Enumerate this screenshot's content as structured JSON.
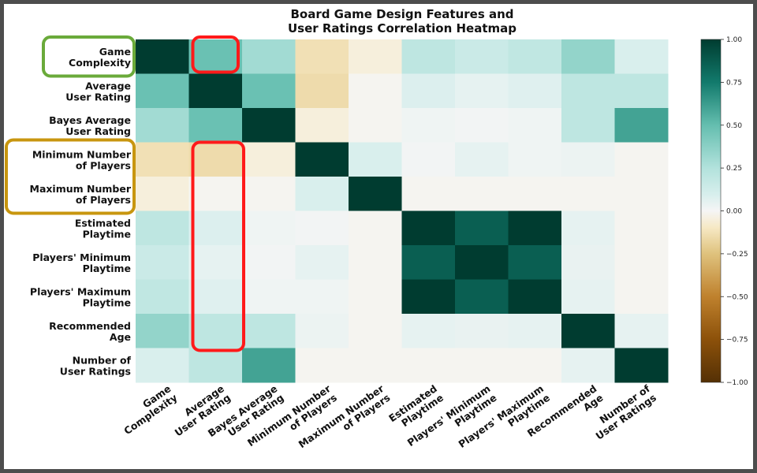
{
  "chart_data": {
    "type": "heatmap",
    "title": [
      "Board Game Design Features and",
      "User Ratings Correlation Heatmap"
    ],
    "row_labels": [
      [
        "Game",
        "Complexity"
      ],
      [
        "Average",
        "User Rating"
      ],
      [
        "Bayes Average",
        "User Rating"
      ],
      [
        "Minimum Number",
        "of Players"
      ],
      [
        "Maximum Number",
        "of Players"
      ],
      [
        "Estimated",
        "Playtime"
      ],
      [
        "Players' Minimum",
        "Playtime"
      ],
      [
        "Players' Maximum",
        "Playtime"
      ],
      [
        "Recommended",
        "Age"
      ],
      [
        "Number of",
        "User Ratings"
      ]
    ],
    "col_labels": [
      [
        "Game",
        "Complexity"
      ],
      [
        "Average",
        "User Rating"
      ],
      [
        "Bayes Average",
        "User Rating"
      ],
      [
        "Minimum Number",
        "of Players"
      ],
      [
        "Maximum Number",
        "of Players"
      ],
      [
        "Estimated",
        "Playtime"
      ],
      [
        "Players' Minimum",
        "Playtime"
      ],
      [
        "Players' Maximum",
        "Playtime"
      ],
      [
        "Recommended",
        "Age"
      ],
      [
        "Number of",
        "User Ratings"
      ]
    ],
    "matrix": [
      [
        1.0,
        0.48,
        0.3,
        -0.13,
        -0.05,
        0.2,
        0.15,
        0.19,
        0.35,
        0.09
      ],
      [
        0.48,
        1.0,
        0.48,
        -0.15,
        -0.01,
        0.08,
        0.05,
        0.07,
        0.2,
        0.2
      ],
      [
        0.3,
        0.48,
        1.0,
        -0.05,
        -0.01,
        0.02,
        0.01,
        0.02,
        0.2,
        0.6
      ],
      [
        -0.13,
        -0.15,
        -0.05,
        1.0,
        0.09,
        0.01,
        0.05,
        0.02,
        0.03,
        -0.01
      ],
      [
        -0.05,
        -0.01,
        -0.01,
        0.09,
        1.0,
        -0.01,
        -0.01,
        -0.01,
        -0.01,
        -0.01
      ],
      [
        0.2,
        0.08,
        0.02,
        0.01,
        -0.01,
        1.0,
        0.86,
        1.0,
        0.05,
        -0.01
      ],
      [
        0.15,
        0.05,
        0.01,
        0.05,
        -0.01,
        0.86,
        1.0,
        0.86,
        0.04,
        -0.01
      ],
      [
        0.19,
        0.07,
        0.02,
        0.02,
        -0.01,
        1.0,
        0.86,
        1.0,
        0.05,
        -0.01
      ],
      [
        0.35,
        0.2,
        0.2,
        0.03,
        -0.01,
        0.05,
        0.04,
        0.05,
        1.0,
        0.05
      ],
      [
        0.09,
        0.2,
        0.6,
        -0.01,
        -0.01,
        -0.01,
        -0.01,
        -0.01,
        0.05,
        1.0
      ]
    ],
    "vmin": -1.0,
    "vmax": 1.0,
    "colormap": "BrBG",
    "colorbar_ticks": [
      "1.00",
      "0.75",
      "0.50",
      "0.25",
      "0.00",
      "−0.25",
      "−0.50",
      "−0.75",
      "−1.00"
    ],
    "annotations": [
      {
        "kind": "rounded-box",
        "color": "#6aaa3a",
        "target": "row",
        "rows": [
          0,
          0
        ]
      },
      {
        "kind": "rounded-box",
        "color": "#c8960f",
        "target": "row",
        "rows": [
          3,
          4
        ]
      },
      {
        "kind": "rounded-box",
        "color": "#ff1a1a",
        "target": "cell",
        "row": 0,
        "col": 1
      },
      {
        "kind": "rounded-box",
        "color": "#ff1a1a",
        "target": "column",
        "col": 1,
        "rows": [
          3,
          8
        ]
      }
    ]
  }
}
